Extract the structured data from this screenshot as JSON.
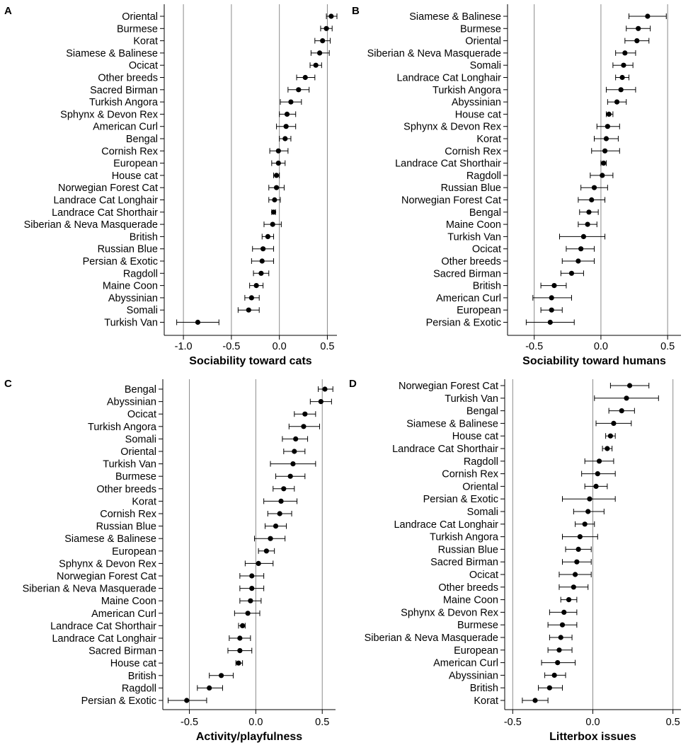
{
  "chart_data": [
    {
      "panel_label": "A",
      "type": "scatter",
      "style": "forest-plot",
      "xlabel": "Sociability toward cats",
      "xlim": [
        -1.2,
        0.6
      ],
      "xticks": [
        -1.0,
        -0.5,
        0.0,
        0.5
      ],
      "tick_labels": [
        "-1.0",
        "-0.5",
        "0.0",
        "0.5"
      ],
      "gridlines_x": [
        -1.0,
        -0.5,
        0.0,
        0.5
      ],
      "rows": [
        {
          "label": "Oriental",
          "estimate": 0.54,
          "low": 0.49,
          "high": 0.6
        },
        {
          "label": "Burmese",
          "estimate": 0.49,
          "low": 0.43,
          "high": 0.55
        },
        {
          "label": "Korat",
          "estimate": 0.45,
          "low": 0.37,
          "high": 0.53
        },
        {
          "label": "Siamese & Balinese",
          "estimate": 0.42,
          "low": 0.33,
          "high": 0.52
        },
        {
          "label": "Ocicat",
          "estimate": 0.38,
          "low": 0.32,
          "high": 0.44
        },
        {
          "label": "Other breeds",
          "estimate": 0.27,
          "low": 0.18,
          "high": 0.37
        },
        {
          "label": "Sacred Birman",
          "estimate": 0.2,
          "low": 0.09,
          "high": 0.31
        },
        {
          "label": "Turkish Angora",
          "estimate": 0.12,
          "low": 0.01,
          "high": 0.23
        },
        {
          "label": "Sphynx & Devon Rex",
          "estimate": 0.08,
          "low": 0.0,
          "high": 0.17
        },
        {
          "label": "American Curl",
          "estimate": 0.07,
          "low": -0.03,
          "high": 0.17
        },
        {
          "label": "Bengal",
          "estimate": 0.06,
          "low": 0.0,
          "high": 0.12
        },
        {
          "label": "Cornish Rex",
          "estimate": -0.01,
          "low": -0.1,
          "high": 0.09
        },
        {
          "label": "European",
          "estimate": -0.01,
          "low": -0.08,
          "high": 0.06
        },
        {
          "label": "House cat",
          "estimate": -0.03,
          "low": -0.06,
          "high": 0.0
        },
        {
          "label": "Norwegian Forest Cat",
          "estimate": -0.03,
          "low": -0.11,
          "high": 0.05
        },
        {
          "label": "Landrace Cat Longhair",
          "estimate": -0.05,
          "low": -0.11,
          "high": 0.01
        },
        {
          "label": "Landrace Cat Shorthair",
          "estimate": -0.06,
          "low": -0.08,
          "high": -0.04
        },
        {
          "label": "Siberian & Neva Masquerade",
          "estimate": -0.07,
          "low": -0.16,
          "high": 0.02
        },
        {
          "label": "British",
          "estimate": -0.12,
          "low": -0.18,
          "high": -0.06
        },
        {
          "label": "Russian Blue",
          "estimate": -0.17,
          "low": -0.28,
          "high": -0.06
        },
        {
          "label": "Persian & Exotic",
          "estimate": -0.18,
          "low": -0.29,
          "high": -0.06
        },
        {
          "label": "Ragdoll",
          "estimate": -0.19,
          "low": -0.27,
          "high": -0.11
        },
        {
          "label": "Maine Coon",
          "estimate": -0.24,
          "low": -0.31,
          "high": -0.17
        },
        {
          "label": "Abyssinian",
          "estimate": -0.29,
          "low": -0.36,
          "high": -0.21
        },
        {
          "label": "Somali",
          "estimate": -0.32,
          "low": -0.43,
          "high": -0.21
        },
        {
          "label": "Turkish Van",
          "estimate": -0.85,
          "low": -1.07,
          "high": -0.63
        }
      ]
    },
    {
      "panel_label": "B",
      "type": "scatter",
      "style": "forest-plot",
      "xlabel": "Sociability toward humans",
      "xlim": [
        -0.7,
        0.6
      ],
      "xticks": [
        -0.5,
        0.0,
        0.5
      ],
      "tick_labels": [
        "-0.5",
        "0.0",
        "0.5"
      ],
      "gridlines_x": [
        -0.5,
        0.0,
        0.5
      ],
      "rows": [
        {
          "label": "Siamese & Balinese",
          "estimate": 0.35,
          "low": 0.21,
          "high": 0.49
        },
        {
          "label": "Burmese",
          "estimate": 0.28,
          "low": 0.19,
          "high": 0.37
        },
        {
          "label": "Oriental",
          "estimate": 0.27,
          "low": 0.18,
          "high": 0.36
        },
        {
          "label": "Siberian & Neva Masquerade",
          "estimate": 0.18,
          "low": 0.11,
          "high": 0.26
        },
        {
          "label": "Somali",
          "estimate": 0.17,
          "low": 0.09,
          "high": 0.24
        },
        {
          "label": "Landrace Cat Longhair",
          "estimate": 0.16,
          "low": 0.11,
          "high": 0.21
        },
        {
          "label": "Turkish Angora",
          "estimate": 0.15,
          "low": 0.04,
          "high": 0.26
        },
        {
          "label": "Abyssinian",
          "estimate": 0.12,
          "low": 0.05,
          "high": 0.19
        },
        {
          "label": "House cat",
          "estimate": 0.06,
          "low": 0.04,
          "high": 0.09
        },
        {
          "label": "Sphynx & Devon Rex",
          "estimate": 0.05,
          "low": -0.03,
          "high": 0.14
        },
        {
          "label": "Korat",
          "estimate": 0.04,
          "low": -0.05,
          "high": 0.13
        },
        {
          "label": "Cornish Rex",
          "estimate": 0.03,
          "low": -0.07,
          "high": 0.14
        },
        {
          "label": "Landrace Cat Shorthair",
          "estimate": 0.02,
          "low": 0.0,
          "high": 0.04
        },
        {
          "label": "Ragdoll",
          "estimate": 0.01,
          "low": -0.08,
          "high": 0.09
        },
        {
          "label": "Russian Blue",
          "estimate": -0.05,
          "low": -0.15,
          "high": 0.05
        },
        {
          "label": "Norwegian Forest Cat",
          "estimate": -0.07,
          "low": -0.17,
          "high": 0.03
        },
        {
          "label": "Bengal",
          "estimate": -0.09,
          "low": -0.16,
          "high": -0.02
        },
        {
          "label": "Maine Coon",
          "estimate": -0.1,
          "low": -0.17,
          "high": -0.03
        },
        {
          "label": "Turkish Van",
          "estimate": -0.13,
          "low": -0.31,
          "high": 0.03
        },
        {
          "label": "Ocicat",
          "estimate": -0.15,
          "low": -0.26,
          "high": -0.05
        },
        {
          "label": "Other breeds",
          "estimate": -0.17,
          "low": -0.29,
          "high": -0.05
        },
        {
          "label": "Sacred Birman",
          "estimate": -0.22,
          "low": -0.3,
          "high": -0.13
        },
        {
          "label": "British",
          "estimate": -0.35,
          "low": -0.45,
          "high": -0.26
        },
        {
          "label": "American Curl",
          "estimate": -0.37,
          "low": -0.51,
          "high": -0.22
        },
        {
          "label": "European",
          "estimate": -0.37,
          "low": -0.45,
          "high": -0.29
        },
        {
          "label": "Persian & Exotic",
          "estimate": -0.38,
          "low": -0.56,
          "high": -0.2
        }
      ]
    },
    {
      "panel_label": "C",
      "type": "scatter",
      "style": "forest-plot",
      "xlabel": "Activity/playfulness",
      "xlim": [
        -0.7,
        0.6
      ],
      "xticks": [
        -0.5,
        0.0,
        0.5
      ],
      "tick_labels": [
        "-0.5",
        "0.0",
        "0.5"
      ],
      "gridlines_x": [
        -0.5,
        0.0,
        0.5
      ],
      "rows": [
        {
          "label": "Bengal",
          "estimate": 0.52,
          "low": 0.47,
          "high": 0.58
        },
        {
          "label": "Abyssinian",
          "estimate": 0.49,
          "low": 0.41,
          "high": 0.57
        },
        {
          "label": "Ocicat",
          "estimate": 0.37,
          "low": 0.29,
          "high": 0.45
        },
        {
          "label": "Turkish Angora",
          "estimate": 0.36,
          "low": 0.25,
          "high": 0.48
        },
        {
          "label": "Somali",
          "estimate": 0.3,
          "low": 0.2,
          "high": 0.39
        },
        {
          "label": "Oriental",
          "estimate": 0.29,
          "low": 0.21,
          "high": 0.37
        },
        {
          "label": "Turkish Van",
          "estimate": 0.28,
          "low": 0.11,
          "high": 0.45
        },
        {
          "label": "Burmese",
          "estimate": 0.26,
          "low": 0.15,
          "high": 0.37
        },
        {
          "label": "Other breeds",
          "estimate": 0.21,
          "low": 0.13,
          "high": 0.29
        },
        {
          "label": "Korat",
          "estimate": 0.19,
          "low": 0.06,
          "high": 0.31
        },
        {
          "label": "Cornish Rex",
          "estimate": 0.18,
          "low": 0.09,
          "high": 0.27
        },
        {
          "label": "Russian Blue",
          "estimate": 0.15,
          "low": 0.07,
          "high": 0.23
        },
        {
          "label": "Siamese & Balinese",
          "estimate": 0.11,
          "low": -0.01,
          "high": 0.22
        },
        {
          "label": "European",
          "estimate": 0.08,
          "low": 0.02,
          "high": 0.14
        },
        {
          "label": "Sphynx & Devon Rex",
          "estimate": 0.02,
          "low": -0.08,
          "high": 0.13
        },
        {
          "label": "Norwegian Forest Cat",
          "estimate": -0.03,
          "low": -0.12,
          "high": 0.06
        },
        {
          "label": "Siberian & Neva Masquerade",
          "estimate": -0.03,
          "low": -0.12,
          "high": 0.06
        },
        {
          "label": "Maine Coon",
          "estimate": -0.04,
          "low": -0.12,
          "high": 0.04
        },
        {
          "label": "American Curl",
          "estimate": -0.06,
          "low": -0.16,
          "high": 0.03
        },
        {
          "label": "Landrace Cat Shorthair",
          "estimate": -0.1,
          "low": -0.13,
          "high": -0.08
        },
        {
          "label": "Landrace Cat Longhair",
          "estimate": -0.12,
          "low": -0.2,
          "high": -0.04
        },
        {
          "label": "Sacred Birman",
          "estimate": -0.12,
          "low": -0.21,
          "high": -0.03
        },
        {
          "label": "House cat",
          "estimate": -0.13,
          "low": -0.15,
          "high": -0.1
        },
        {
          "label": "British",
          "estimate": -0.26,
          "low": -0.35,
          "high": -0.17
        },
        {
          "label": "Ragdoll",
          "estimate": -0.35,
          "low": -0.44,
          "high": -0.25
        },
        {
          "label": "Persian & Exotic",
          "estimate": -0.52,
          "low": -0.66,
          "high": -0.37
        }
      ]
    },
    {
      "panel_label": "D",
      "type": "scatter",
      "style": "forest-plot",
      "xlabel": "Litterbox issues",
      "xlim": [
        -0.55,
        0.55
      ],
      "xticks": [
        -0.5,
        0.0,
        0.5
      ],
      "tick_labels": [
        "-0.5",
        "0.0",
        "0.5"
      ],
      "gridlines_x": [
        -0.5,
        0.0,
        0.5
      ],
      "rows": [
        {
          "label": "Norwegian Forest Cat",
          "estimate": 0.23,
          "low": 0.11,
          "high": 0.35
        },
        {
          "label": "Turkish Van",
          "estimate": 0.21,
          "low": 0.01,
          "high": 0.41
        },
        {
          "label": "Bengal",
          "estimate": 0.18,
          "low": 0.1,
          "high": 0.26
        },
        {
          "label": "Siamese & Balinese",
          "estimate": 0.13,
          "low": 0.02,
          "high": 0.24
        },
        {
          "label": "House cat",
          "estimate": 0.11,
          "low": 0.08,
          "high": 0.14
        },
        {
          "label": "Landrace Cat Shorthair",
          "estimate": 0.09,
          "low": 0.06,
          "high": 0.12
        },
        {
          "label": "Ragdoll",
          "estimate": 0.04,
          "low": -0.05,
          "high": 0.13
        },
        {
          "label": "Cornish Rex",
          "estimate": 0.03,
          "low": -0.07,
          "high": 0.14
        },
        {
          "label": "Oriental",
          "estimate": 0.02,
          "low": -0.05,
          "high": 0.09
        },
        {
          "label": "Persian & Exotic",
          "estimate": -0.02,
          "low": -0.19,
          "high": 0.14
        },
        {
          "label": "Somali",
          "estimate": -0.03,
          "low": -0.12,
          "high": 0.07
        },
        {
          "label": "Landrace Cat Longhair",
          "estimate": -0.05,
          "low": -0.11,
          "high": 0.01
        },
        {
          "label": "Turkish Angora",
          "estimate": -0.08,
          "low": -0.19,
          "high": 0.03
        },
        {
          "label": "Russian Blue",
          "estimate": -0.09,
          "low": -0.17,
          "high": -0.01
        },
        {
          "label": "Sacred Birman",
          "estimate": -0.1,
          "low": -0.19,
          "high": -0.01
        },
        {
          "label": "Ocicat",
          "estimate": -0.11,
          "low": -0.21,
          "high": -0.01
        },
        {
          "label": "Other breeds",
          "estimate": -0.12,
          "low": -0.21,
          "high": -0.03
        },
        {
          "label": "Maine Coon",
          "estimate": -0.15,
          "low": -0.2,
          "high": -0.1
        },
        {
          "label": "Sphynx & Devon Rex",
          "estimate": -0.18,
          "low": -0.27,
          "high": -0.1
        },
        {
          "label": "Burmese",
          "estimate": -0.19,
          "low": -0.28,
          "high": -0.1
        },
        {
          "label": "Siberian & Neva Masquerade",
          "estimate": -0.2,
          "low": -0.27,
          "high": -0.13
        },
        {
          "label": "European",
          "estimate": -0.21,
          "low": -0.28,
          "high": -0.13
        },
        {
          "label": "American Curl",
          "estimate": -0.22,
          "low": -0.32,
          "high": -0.11
        },
        {
          "label": "Abyssinian",
          "estimate": -0.24,
          "low": -0.3,
          "high": -0.17
        },
        {
          "label": "British",
          "estimate": -0.27,
          "low": -0.34,
          "high": -0.19
        },
        {
          "label": "Korat",
          "estimate": -0.36,
          "low": -0.44,
          "high": -0.28
        }
      ]
    }
  ]
}
